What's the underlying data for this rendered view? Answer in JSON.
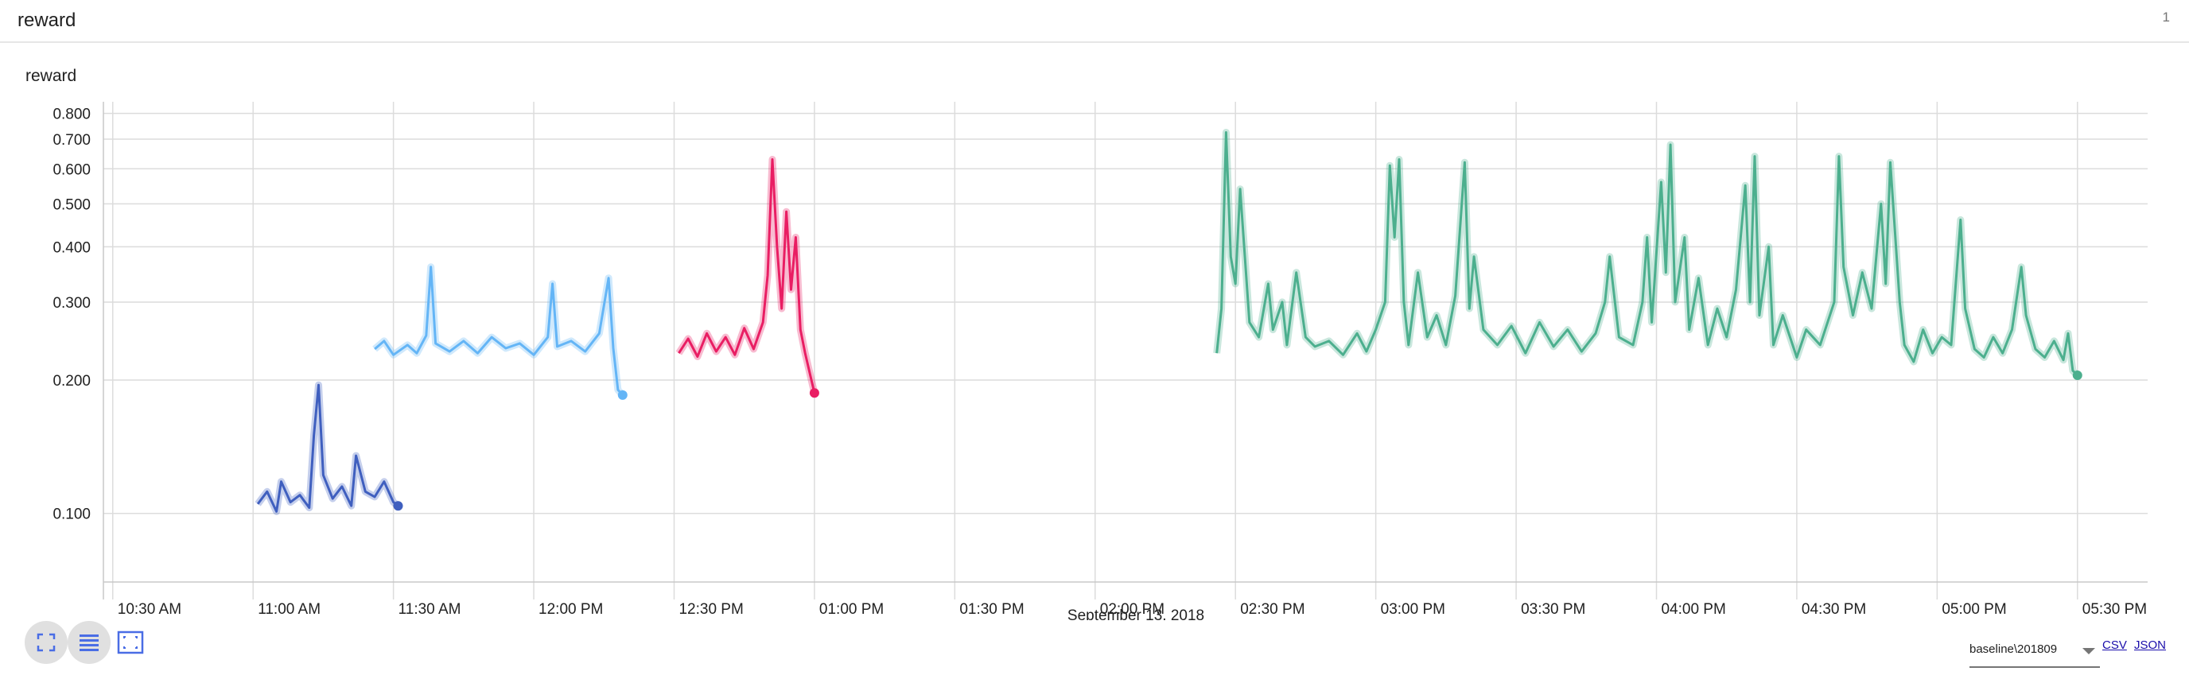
{
  "card": {
    "title": "reward",
    "count": "1"
  },
  "chart_data": {
    "type": "line",
    "title": "reward",
    "xlabel": "September 13, 2018",
    "ylabel": "",
    "ylim": [
      0.07,
      0.85
    ],
    "yscale": "log",
    "y_ticks": [
      0.1,
      0.2,
      0.3,
      0.4,
      0.5,
      0.6,
      0.7,
      0.8
    ],
    "y_tick_labels": [
      "0.100",
      "0.200",
      "0.300",
      "0.400",
      "0.500",
      "0.600",
      "0.700",
      "0.800"
    ],
    "xlim": [
      "10:28",
      "17:45"
    ],
    "x_ticks": [
      "10:30",
      "11:00",
      "11:30",
      "12:00",
      "12:30",
      "13:00",
      "13:30",
      "14:00",
      "14:30",
      "15:00",
      "15:30",
      "16:00",
      "16:30",
      "17:00",
      "17:30"
    ],
    "x_tick_labels": [
      "10:30 AM",
      "11:00 AM",
      "11:30 AM",
      "12:00 PM",
      "12:30 PM",
      "01:00 PM",
      "01:30 PM",
      "02:00 PM",
      "02:30 PM",
      "03:00 PM",
      "03:30 PM",
      "04:00 PM",
      "04:30 PM",
      "05:00 PM",
      "05:30 PM"
    ],
    "grid": true,
    "series": [
      {
        "color": "#3f5fbf",
        "points": [
          [
            "11:01",
            0.105
          ],
          [
            "11:03",
            0.112
          ],
          [
            "11:05",
            0.101
          ],
          [
            "11:06",
            0.118
          ],
          [
            "11:08",
            0.106
          ],
          [
            "11:10",
            0.11
          ],
          [
            "11:12",
            0.103
          ],
          [
            "11:13",
            0.15
          ],
          [
            "11:14",
            0.195
          ],
          [
            "11:15",
            0.122
          ],
          [
            "11:17",
            0.108
          ],
          [
            "11:19",
            0.115
          ],
          [
            "11:21",
            0.104
          ],
          [
            "11:22",
            0.135
          ],
          [
            "11:24",
            0.112
          ],
          [
            "11:26",
            0.109
          ],
          [
            "11:28",
            0.118
          ],
          [
            "11:30",
            0.106
          ],
          [
            "11:31",
            0.104
          ]
        ]
      },
      {
        "color": "#64b5f6",
        "points": [
          [
            "11:26",
            0.235
          ],
          [
            "11:28",
            0.245
          ],
          [
            "11:30",
            0.228
          ],
          [
            "11:33",
            0.24
          ],
          [
            "11:35",
            0.23
          ],
          [
            "11:37",
            0.252
          ],
          [
            "11:38",
            0.36
          ],
          [
            "11:39",
            0.242
          ],
          [
            "11:42",
            0.232
          ],
          [
            "11:45",
            0.245
          ],
          [
            "11:48",
            0.23
          ],
          [
            "11:51",
            0.25
          ],
          [
            "11:54",
            0.236
          ],
          [
            "11:57",
            0.242
          ],
          [
            "12:00",
            0.228
          ],
          [
            "12:03",
            0.25
          ],
          [
            "12:04",
            0.33
          ],
          [
            "12:05",
            0.238
          ],
          [
            "12:08",
            0.245
          ],
          [
            "12:11",
            0.232
          ],
          [
            "12:14",
            0.255
          ],
          [
            "12:16",
            0.34
          ],
          [
            "12:17",
            0.236
          ],
          [
            "12:18",
            0.19
          ],
          [
            "12:19",
            0.185
          ]
        ]
      },
      {
        "color": "#e91e63",
        "points": [
          [
            "12:31",
            0.23
          ],
          [
            "12:33",
            0.248
          ],
          [
            "12:35",
            0.226
          ],
          [
            "12:37",
            0.255
          ],
          [
            "12:39",
            0.232
          ],
          [
            "12:41",
            0.25
          ],
          [
            "12:43",
            0.228
          ],
          [
            "12:45",
            0.262
          ],
          [
            "12:47",
            0.235
          ],
          [
            "12:49",
            0.27
          ],
          [
            "12:50",
            0.345
          ],
          [
            "12:51",
            0.63
          ],
          [
            "12:52",
            0.4
          ],
          [
            "12:53",
            0.29
          ],
          [
            "12:54",
            0.48
          ],
          [
            "12:55",
            0.32
          ],
          [
            "12:56",
            0.42
          ],
          [
            "12:57",
            0.26
          ],
          [
            "12:58",
            0.23
          ],
          [
            "13:00",
            0.187
          ]
        ]
      },
      {
        "color": "#4caf8e",
        "points": [
          [
            "14:26",
            0.23
          ],
          [
            "14:27",
            0.29
          ],
          [
            "14:28",
            0.725
          ],
          [
            "14:29",
            0.38
          ],
          [
            "14:30",
            0.33
          ],
          [
            "14:31",
            0.54
          ],
          [
            "14:33",
            0.27
          ],
          [
            "14:35",
            0.25
          ],
          [
            "14:37",
            0.33
          ],
          [
            "14:38",
            0.26
          ],
          [
            "14:40",
            0.3
          ],
          [
            "14:41",
            0.24
          ],
          [
            "14:43",
            0.35
          ],
          [
            "14:45",
            0.25
          ],
          [
            "14:47",
            0.238
          ],
          [
            "14:50",
            0.245
          ],
          [
            "14:53",
            0.228
          ],
          [
            "14:56",
            0.255
          ],
          [
            "14:58",
            0.232
          ],
          [
            "15:00",
            0.26
          ],
          [
            "15:02",
            0.3
          ],
          [
            "15:03",
            0.61
          ],
          [
            "15:04",
            0.42
          ],
          [
            "15:05",
            0.63
          ],
          [
            "15:06",
            0.3
          ],
          [
            "15:07",
            0.24
          ],
          [
            "15:09",
            0.35
          ],
          [
            "15:11",
            0.25
          ],
          [
            "15:13",
            0.28
          ],
          [
            "15:15",
            0.24
          ],
          [
            "15:17",
            0.31
          ],
          [
            "15:19",
            0.62
          ],
          [
            "15:20",
            0.29
          ],
          [
            "15:21",
            0.38
          ],
          [
            "15:23",
            0.26
          ],
          [
            "15:26",
            0.24
          ],
          [
            "15:29",
            0.265
          ],
          [
            "15:32",
            0.23
          ],
          [
            "15:35",
            0.27
          ],
          [
            "15:38",
            0.238
          ],
          [
            "15:41",
            0.26
          ],
          [
            "15:44",
            0.232
          ],
          [
            "15:47",
            0.255
          ],
          [
            "15:49",
            0.3
          ],
          [
            "15:50",
            0.38
          ],
          [
            "15:52",
            0.25
          ],
          [
            "15:55",
            0.24
          ],
          [
            "15:57",
            0.3
          ],
          [
            "15:58",
            0.42
          ],
          [
            "15:59",
            0.27
          ],
          [
            "16:01",
            0.56
          ],
          [
            "16:02",
            0.35
          ],
          [
            "16:03",
            0.68
          ],
          [
            "16:04",
            0.3
          ],
          [
            "16:06",
            0.42
          ],
          [
            "16:07",
            0.26
          ],
          [
            "16:09",
            0.34
          ],
          [
            "16:11",
            0.24
          ],
          [
            "16:13",
            0.29
          ],
          [
            "16:15",
            0.25
          ],
          [
            "16:17",
            0.32
          ],
          [
            "16:19",
            0.55
          ],
          [
            "16:20",
            0.3
          ],
          [
            "16:21",
            0.64
          ],
          [
            "16:22",
            0.28
          ],
          [
            "16:24",
            0.4
          ],
          [
            "16:25",
            0.24
          ],
          [
            "16:27",
            0.28
          ],
          [
            "16:30",
            0.225
          ],
          [
            "16:32",
            0.26
          ],
          [
            "16:35",
            0.24
          ],
          [
            "16:38",
            0.3
          ],
          [
            "16:39",
            0.64
          ],
          [
            "16:40",
            0.36
          ],
          [
            "16:42",
            0.28
          ],
          [
            "16:44",
            0.35
          ],
          [
            "16:46",
            0.29
          ],
          [
            "16:48",
            0.5
          ],
          [
            "16:49",
            0.33
          ],
          [
            "16:50",
            0.62
          ],
          [
            "16:52",
            0.3
          ],
          [
            "16:53",
            0.24
          ],
          [
            "16:55",
            0.22
          ],
          [
            "16:57",
            0.26
          ],
          [
            "16:59",
            0.23
          ],
          [
            "17:01",
            0.25
          ],
          [
            "17:03",
            0.24
          ],
          [
            "17:05",
            0.46
          ],
          [
            "17:06",
            0.29
          ],
          [
            "17:08",
            0.235
          ],
          [
            "17:10",
            0.225
          ],
          [
            "17:12",
            0.25
          ],
          [
            "17:14",
            0.23
          ],
          [
            "17:16",
            0.26
          ],
          [
            "17:18",
            0.36
          ],
          [
            "17:19",
            0.28
          ],
          [
            "17:21",
            0.235
          ],
          [
            "17:23",
            0.225
          ],
          [
            "17:25",
            0.245
          ],
          [
            "17:27",
            0.222
          ],
          [
            "17:28",
            0.255
          ],
          [
            "17:29",
            0.21
          ],
          [
            "17:30",
            0.205
          ]
        ]
      }
    ]
  },
  "controls": {
    "icons": [
      "fullscreen-icon",
      "list-icon",
      "fit-domain-icon"
    ],
    "run_select_value": "baseline\\201809",
    "csv_label": "CSV",
    "json_label": "JSON"
  }
}
